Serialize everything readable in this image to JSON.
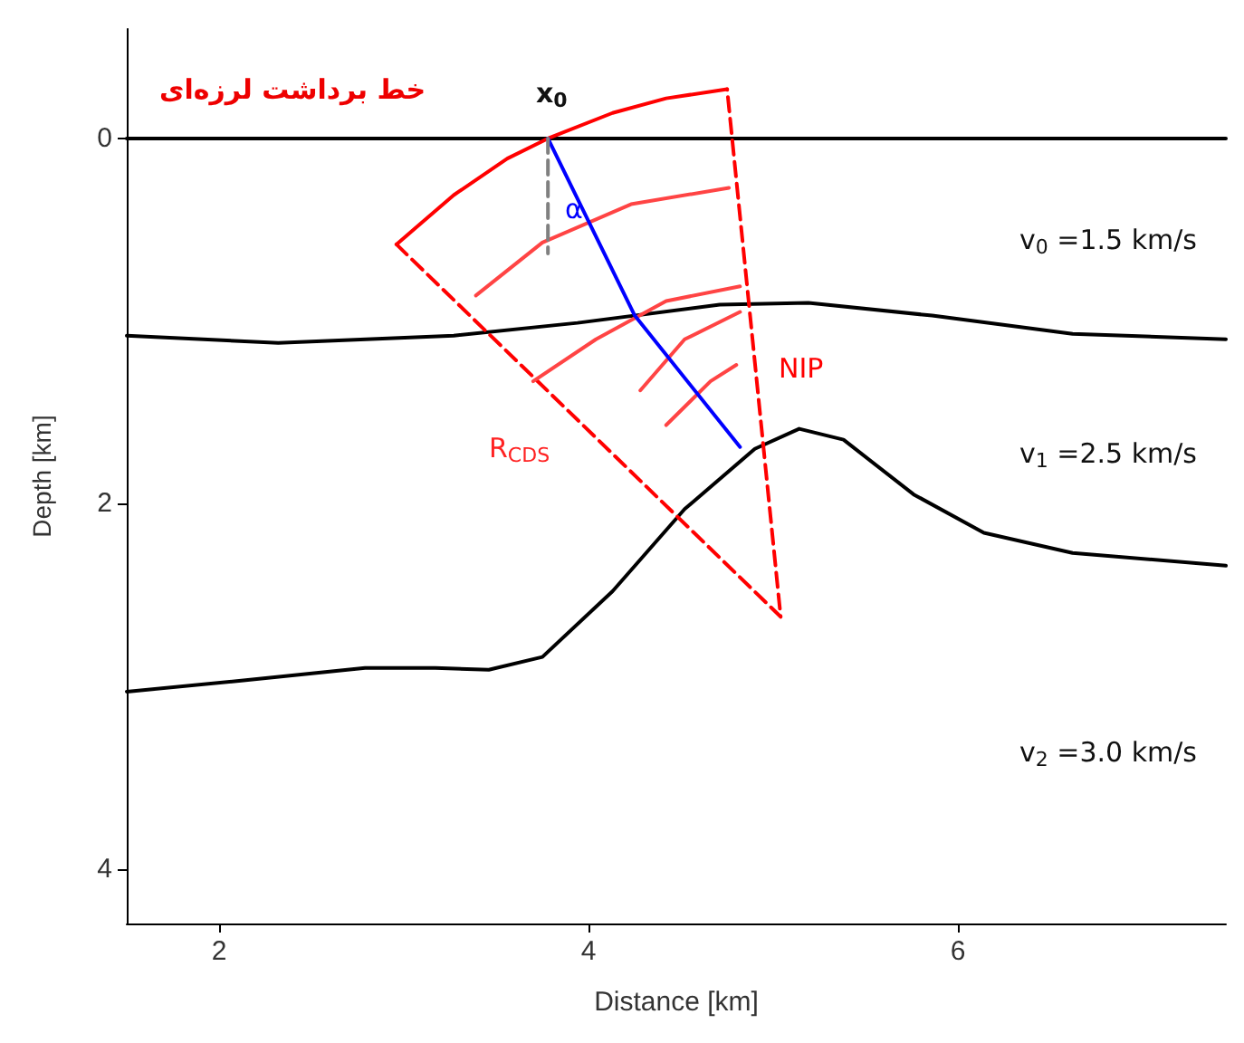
{
  "chart_data": {
    "type": "line",
    "xlabel": "Distance [km]",
    "ylabel": "Depth [km]",
    "xlim": [
      1.5,
      7.45
    ],
    "ylim": [
      4.3,
      -0.6
    ],
    "xticks": [
      2,
      4,
      6
    ],
    "yticks": [
      0,
      2,
      4
    ],
    "grid": false,
    "marker": "none",
    "line_style": "solid",
    "series": [
      {
        "color": "#000000",
        "x": [
          1.5,
          7.45
        ],
        "values": [
          0,
          0
        ]
      },
      {
        "color": "#000000",
        "x": [
          1.5,
          2.32,
          3.27,
          3.94,
          4.71,
          5.19,
          5.86,
          6.62,
          7.45
        ],
        "values": [
          1.08,
          1.12,
          1.08,
          1.01,
          0.91,
          0.9,
          0.97,
          1.07,
          1.1
        ]
      },
      {
        "color": "#000000",
        "x": [
          1.5,
          2.12,
          2.79,
          3.17,
          3.46,
          3.75,
          4.13,
          4.52,
          4.9,
          5.14,
          5.38,
          5.76,
          6.14,
          6.62,
          7.45
        ],
        "values": [
          3.03,
          2.97,
          2.9,
          2.9,
          2.91,
          2.84,
          2.48,
          2.03,
          1.7,
          1.59,
          1.65,
          1.95,
          2.16,
          2.27,
          2.34
        ]
      },
      {
        "color": "#ff0000",
        "x": [
          2.96,
          3.27,
          3.56,
          3.78,
          4.13,
          4.42,
          4.75
        ],
        "values": [
          0.58,
          0.31,
          0.11,
          0,
          -0.14,
          -0.22,
          -0.27
        ]
      },
      {
        "color": "#ff0000",
        "line_style": "dashed",
        "x": [
          2.96,
          5.04,
          4.75
        ],
        "values": [
          0.58,
          2.62,
          -0.27
        ]
      },
      {
        "color": "#ff4444",
        "x": [
          3.39,
          3.75,
          4.23,
          4.76
        ],
        "values": [
          0.86,
          0.57,
          0.36,
          0.27
        ]
      },
      {
        "color": "#ff4444",
        "x": [
          3.7,
          4.04,
          4.42,
          4.82
        ],
        "values": [
          1.33,
          1.1,
          0.89,
          0.81
        ]
      },
      {
        "color": "#ff4444",
        "x": [
          4.28,
          4.52,
          4.82
        ],
        "values": [
          1.38,
          1.1,
          0.95
        ]
      },
      {
        "color": "#ff4444",
        "x": [
          4.42,
          4.66,
          4.8
        ],
        "values": [
          1.57,
          1.33,
          1.24
        ]
      },
      {
        "color": "#0000ff",
        "x": [
          3.78,
          4.25,
          4.82
        ],
        "values": [
          0,
          0.97,
          1.69
        ]
      },
      {
        "color": "#808080",
        "line_style": "dashed",
        "x": [
          3.78,
          3.78
        ],
        "values": [
          0,
          0.63
        ]
      }
    ],
    "annotations": [
      "خط برداشت لرزه‌ای",
      "x$_{0}$",
      "α",
      "v$_{0}$ =1.5 km/s",
      "v$_{1}$ =2.5 km/s",
      "v$_{2}$ =3.0 km/s",
      "NIP",
      "R$_{CDS}$"
    ]
  }
}
